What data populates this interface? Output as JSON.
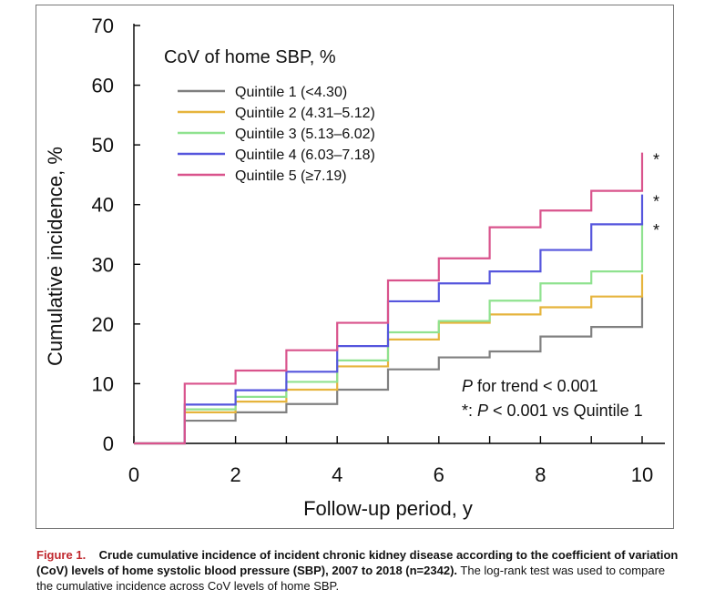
{
  "chart_data": {
    "type": "line",
    "step": true,
    "title": "",
    "xlabel": "Follow-up period, y",
    "ylabel": "Cumulative incidence, %",
    "xlim": [
      0,
      10
    ],
    "ylim": [
      0,
      70
    ],
    "xticks": [
      "0",
      "2",
      "4",
      "6",
      "8",
      "10"
    ],
    "yticks": [
      "0",
      "10",
      "20",
      "30",
      "40",
      "50",
      "60",
      "70"
    ],
    "legend_title": "CoV of home SBP, %",
    "legend_position": "top-left",
    "grid": false,
    "x": [
      0,
      1,
      2,
      3,
      4,
      5,
      6,
      7,
      8,
      9,
      10
    ],
    "series": [
      {
        "name": "Quintile 1 (<4.30)",
        "color": "#808080",
        "values": [
          0,
          3.8,
          5.2,
          6.6,
          9.0,
          12.4,
          14.4,
          15.4,
          17.9,
          19.5,
          24.6
        ],
        "marker": ""
      },
      {
        "name": "Quintile 2 (4.31–5.12)",
        "color": "#e6b43c",
        "values": [
          0,
          5.2,
          7.0,
          9.0,
          12.9,
          17.4,
          20.2,
          21.6,
          22.8,
          24.6,
          28.3
        ],
        "marker": ""
      },
      {
        "name": "Quintile 3 (5.13–6.02)",
        "color": "#8fe28f",
        "values": [
          0,
          5.7,
          7.8,
          10.3,
          13.9,
          18.6,
          20.5,
          23.9,
          26.8,
          28.8,
          36.9
        ],
        "marker": "*"
      },
      {
        "name": "Quintile 4 (6.03–7.18)",
        "color": "#5555dd",
        "values": [
          0,
          6.5,
          8.9,
          12.0,
          16.3,
          23.8,
          26.8,
          28.8,
          32.4,
          36.7,
          41.7
        ],
        "marker": "*"
      },
      {
        "name": "Quintile 5 (≥7.19)",
        "color": "#d9538c",
        "values": [
          0,
          10.0,
          12.2,
          15.6,
          20.2,
          27.3,
          31.0,
          36.2,
          39.0,
          42.3,
          48.7
        ],
        "marker": "*"
      }
    ],
    "annotations": {
      "p_trend_label": "P",
      "p_trend_text": " for trend < 0.001",
      "p_vs_prefix": "*: ",
      "p_vs_label": "P",
      "p_vs_text": " < 0.001 vs Quintile 1"
    }
  },
  "caption": {
    "figure_label": "Figure 1.",
    "bold_text": "Crude cumulative incidence of incident chronic kidney disease according to the coefficient of variation (CoV) levels of home systolic blood pressure (SBP), 2007 to 2018 (n=2342).",
    "plain_text": "The log-rank test was used to compare the cumulative incidence across CoV levels of home SBP."
  }
}
